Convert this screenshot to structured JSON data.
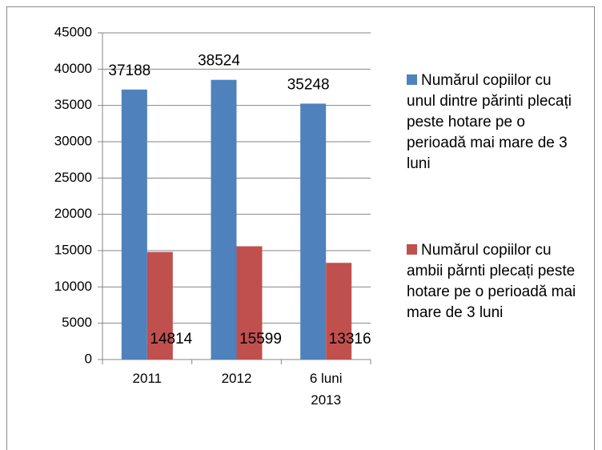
{
  "chart_data": {
    "type": "bar",
    "categories": [
      "2011",
      "2012",
      "6 luni 2013"
    ],
    "series": [
      {
        "name": "Numărul copiilor cu unul dintre părinti plecați peste hotare pe o perioadă mai mare de 3 luni",
        "color": "#4f81bd",
        "values": [
          37188,
          38524,
          35248
        ]
      },
      {
        "name": "Numărul copiilor cu ambii părnti plecați peste hotare pe o perioadă mai mare de 3 luni",
        "color": "#c0504d",
        "values": [
          14814,
          15599,
          13316
        ]
      }
    ],
    "ylim": [
      0,
      45000
    ],
    "yticks": [
      0,
      5000,
      10000,
      15000,
      20000,
      25000,
      30000,
      35000,
      40000,
      45000
    ],
    "grid": true,
    "legend": "right"
  }
}
